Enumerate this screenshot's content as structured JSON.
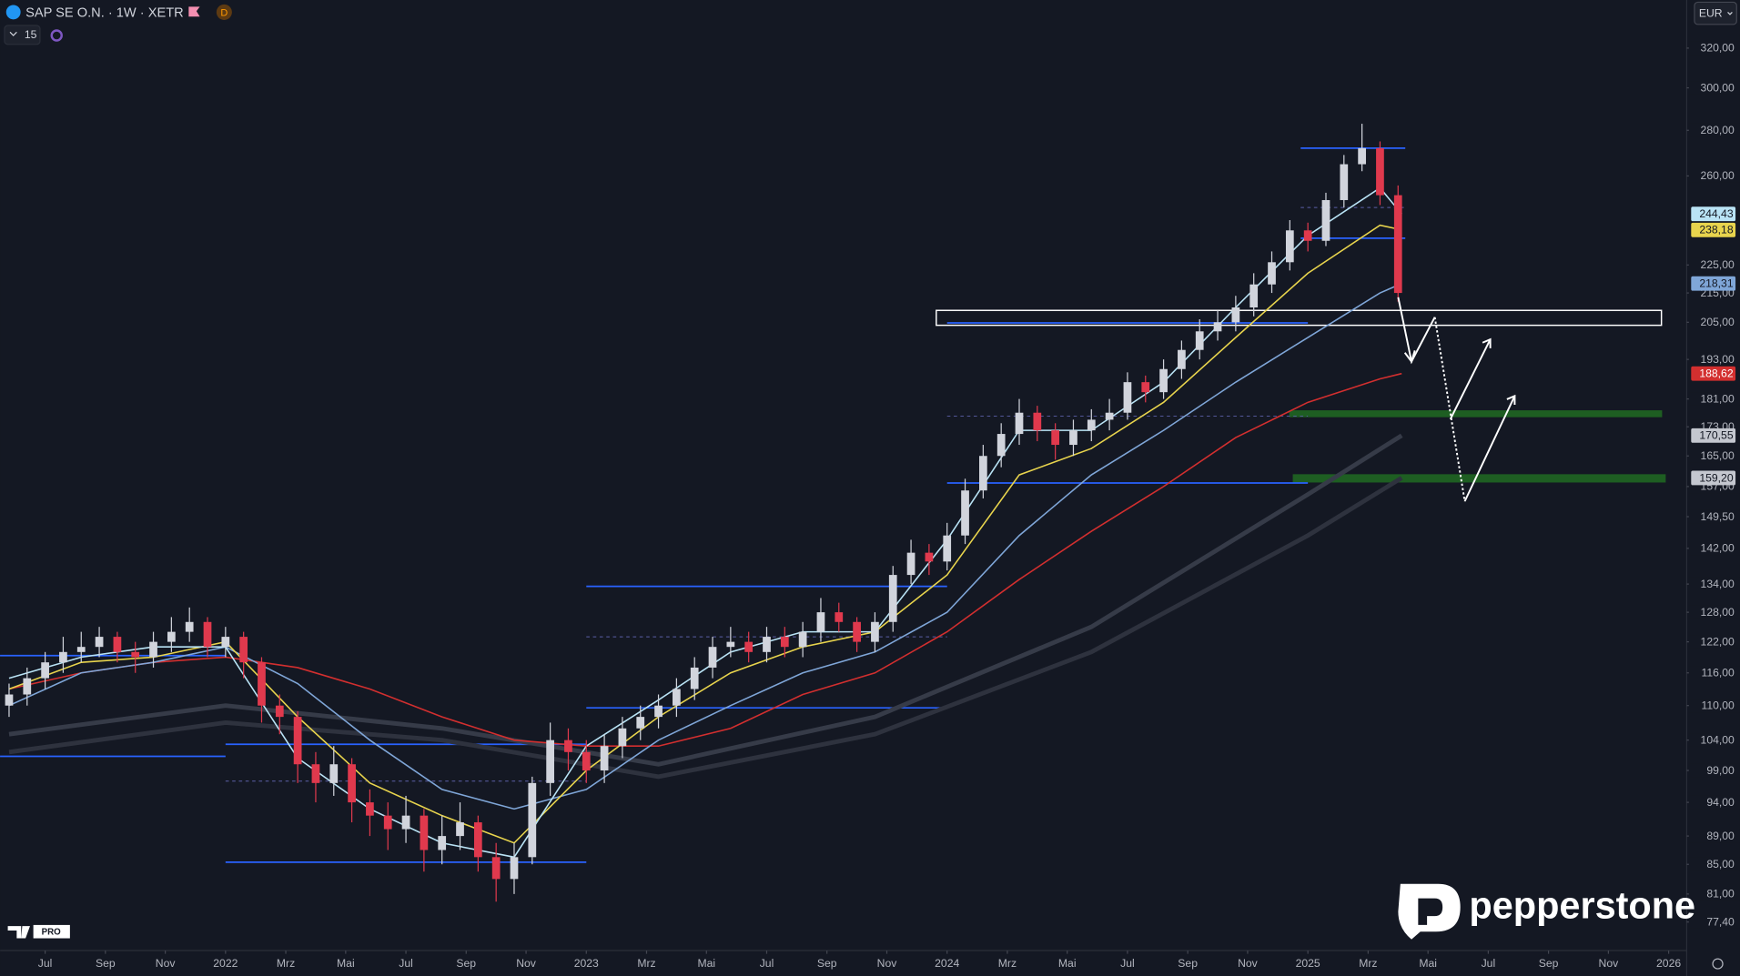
{
  "header": {
    "title": "SAP SE O.N. · 1W · XETR",
    "badge": "D",
    "indicators": "15",
    "currency": "EUR"
  },
  "branding": {
    "brand": "pepperstone",
    "platform": "PRO"
  },
  "chart_data": {
    "type": "candlestick",
    "log_scale": true,
    "grid": false,
    "xlim": [
      2021.375,
      2026.05
    ],
    "ylim": [
      73.9,
      346
    ],
    "up_color": "#d1d4dc",
    "down_color": "#e0394d",
    "xticks": [
      {
        "value": 2021.5,
        "label": "Jul"
      },
      {
        "value": 2021.667,
        "label": "Sep"
      },
      {
        "value": 2021.833,
        "label": "Nov"
      },
      2022,
      {
        "value": 2022.167,
        "label": "Mrz"
      },
      {
        "value": 2022.333,
        "label": "Mai"
      },
      {
        "value": 2022.5,
        "label": "Jul"
      },
      {
        "value": 2022.667,
        "label": "Sep"
      },
      {
        "value": 2022.833,
        "label": "Nov"
      },
      2023,
      {
        "value": 2023.167,
        "label": "Mrz"
      },
      {
        "value": 2023.333,
        "label": "Mai"
      },
      {
        "value": 2023.5,
        "label": "Jul"
      },
      {
        "value": 2023.667,
        "label": "Sep"
      },
      {
        "value": 2023.833,
        "label": "Nov"
      },
      2024,
      {
        "value": 2024.167,
        "label": "Mrz"
      },
      {
        "value": 2024.333,
        "label": "Mai"
      },
      {
        "value": 2024.5,
        "label": "Jul"
      },
      {
        "value": 2024.667,
        "label": "Sep"
      },
      {
        "value": 2024.833,
        "label": "Nov"
      },
      2025,
      {
        "value": 2025.167,
        "label": "Mrz"
      },
      {
        "value": 2025.333,
        "label": "Mai"
      },
      {
        "value": 2025.5,
        "label": "Jul"
      },
      {
        "value": 2025.667,
        "label": "Sep"
      },
      {
        "value": 2025.833,
        "label": "Nov"
      },
      2026
    ],
    "yticks": [
      {
        "value": 320,
        "label": "320,00"
      },
      {
        "value": 300,
        "label": "300,00"
      },
      {
        "value": 280,
        "label": "280,00"
      },
      {
        "value": 260,
        "label": "260,00"
      },
      {
        "value": 225,
        "label": "225,00"
      },
      {
        "value": 215,
        "label": "215,00"
      },
      {
        "value": 205,
        "label": "205,00"
      },
      {
        "value": 193,
        "label": "193,00"
      },
      {
        "value": 181,
        "label": "181,00"
      },
      {
        "value": 173,
        "label": "173,00"
      },
      {
        "value": 165,
        "label": "165,00"
      },
      {
        "value": 157,
        "label": "157,00"
      },
      {
        "value": 149.5,
        "label": "149,50"
      },
      {
        "value": 142,
        "label": "142,00"
      },
      {
        "value": 134,
        "label": "134,00"
      },
      {
        "value": 128,
        "label": "128,00"
      },
      {
        "value": 122,
        "label": "122,00"
      },
      {
        "value": 116,
        "label": "116,00"
      },
      {
        "value": 110,
        "label": "110,00"
      },
      {
        "value": 104,
        "label": "104,00"
      },
      {
        "value": 99,
        "label": "99,00"
      },
      {
        "value": 94,
        "label": "94,00"
      },
      {
        "value": 89,
        "label": "89,00"
      },
      {
        "value": 85,
        "label": "85,00"
      },
      {
        "value": 81,
        "label": "81,00"
      },
      {
        "value": 77.4,
        "label": "77,40"
      }
    ],
    "candles": {
      "x": [
        2021.4,
        2021.45,
        2021.5,
        2021.55,
        2021.6,
        2021.65,
        2021.7,
        2021.75,
        2021.8,
        2021.85,
        2021.9,
        2021.95,
        2022.0,
        2022.05,
        2022.1,
        2022.15,
        2022.2,
        2022.25,
        2022.3,
        2022.35,
        2022.4,
        2022.45,
        2022.5,
        2022.55,
        2022.6,
        2022.65,
        2022.7,
        2022.75,
        2022.8,
        2022.85,
        2022.9,
        2022.95,
        2023.0,
        2023.05,
        2023.1,
        2023.15,
        2023.2,
        2023.25,
        2023.3,
        2023.35,
        2023.4,
        2023.45,
        2023.5,
        2023.55,
        2023.6,
        2023.65,
        2023.7,
        2023.75,
        2023.8,
        2023.85,
        2023.9,
        2023.95,
        2024.0,
        2024.05,
        2024.1,
        2024.15,
        2024.2,
        2024.25,
        2024.3,
        2024.35,
        2024.4,
        2024.45,
        2024.5,
        2024.55,
        2024.6,
        2024.65,
        2024.7,
        2024.75,
        2024.8,
        2024.85,
        2024.9,
        2024.95,
        2025.0,
        2025.05,
        2025.1,
        2025.15,
        2025.2,
        2025.25
      ],
      "open": [
        110,
        112,
        115,
        118,
        120,
        121,
        123,
        120,
        119,
        122,
        124,
        126,
        121,
        123,
        118,
        110,
        108,
        100,
        97,
        100,
        94,
        92,
        90,
        92,
        87,
        89,
        91,
        86,
        83,
        86,
        97,
        104,
        102,
        99,
        103,
        106,
        108,
        110,
        113,
        117,
        121,
        122,
        120,
        123,
        121,
        124,
        128,
        126,
        122,
        126,
        136,
        141,
        139,
        145,
        156,
        165,
        171,
        177,
        172,
        168,
        172,
        175,
        177,
        186,
        183,
        190,
        196,
        202,
        205,
        210,
        218,
        226,
        238,
        234,
        250,
        265,
        272,
        252
      ],
      "high": [
        114,
        117,
        120,
        123,
        124,
        125,
        124,
        122,
        124,
        127,
        129,
        127,
        125,
        124,
        119,
        112,
        109,
        102,
        103,
        101,
        96,
        94,
        95,
        93,
        92,
        94,
        92,
        88,
        88,
        98,
        107,
        106,
        104,
        105,
        108,
        110,
        112,
        115,
        119,
        123,
        125,
        124,
        125,
        125,
        126,
        131,
        130,
        127,
        128,
        138,
        144,
        143,
        148,
        159,
        168,
        174,
        181,
        179,
        174,
        175,
        178,
        181,
        189,
        188,
        193,
        199,
        206,
        209,
        214,
        222,
        230,
        242,
        241,
        253,
        269,
        283,
        275,
        256
      ],
      "low": [
        108,
        110,
        113,
        116,
        118,
        119,
        118,
        116,
        117,
        120,
        122,
        119,
        119,
        115,
        107,
        105,
        97,
        94,
        95,
        91,
        89,
        87,
        88,
        84,
        85,
        87,
        84,
        80,
        81,
        85,
        95,
        99,
        97,
        97,
        101,
        104,
        106,
        108,
        111,
        115,
        119,
        118,
        118,
        119,
        119,
        122,
        124,
        120,
        120,
        124,
        134,
        136,
        137,
        143,
        154,
        162,
        168,
        169,
        164,
        165,
        169,
        172,
        175,
        180,
        181,
        187,
        193,
        199,
        202,
        207,
        215,
        223,
        230,
        232,
        247,
        262,
        248,
        212
      ],
      "close": [
        112,
        115,
        118,
        120,
        121,
        123,
        120,
        119,
        122,
        124,
        126,
        121,
        123,
        118,
        110,
        108,
        100,
        97,
        100,
        94,
        92,
        90,
        92,
        87,
        89,
        91,
        86,
        83,
        86,
        97,
        104,
        102,
        99,
        103,
        106,
        108,
        110,
        113,
        117,
        121,
        122,
        120,
        123,
        121,
        124,
        128,
        126,
        122,
        126,
        136,
        141,
        139,
        145,
        156,
        165,
        171,
        177,
        172,
        168,
        172,
        175,
        177,
        186,
        183,
        190,
        196,
        202,
        205,
        210,
        218,
        226,
        238,
        234,
        250,
        265,
        272,
        252,
        215
      ]
    },
    "series": [
      {
        "color": "#363b48",
        "x": [
          2021.4,
          2022.0,
          2022.6,
          2023.2,
          2023.8,
          2024.4,
          2025.0,
          2025.26
        ],
        "values": [
          105,
          110,
          106,
          100,
          108,
          125,
          155,
          170.55
        ],
        "value_labels": [
          null,
          null,
          null,
          null,
          null,
          null,
          null,
          "170,55"
        ]
      },
      {
        "color": "#2e323e",
        "x": [
          2021.4,
          2022.0,
          2022.6,
          2023.2,
          2023.8,
          2024.4,
          2025.0,
          2025.26
        ],
        "values": [
          102,
          107,
          104,
          98,
          105,
          120,
          145,
          159.2
        ],
        "value_labels": [
          null,
          null,
          null,
          null,
          null,
          null,
          null,
          "159,20"
        ]
      },
      {
        "color": "#d32f2f",
        "x": [
          2021.4,
          2021.6,
          2021.8,
          2022.0,
          2022.2,
          2022.4,
          2022.6,
          2022.8,
          2023.0,
          2023.2,
          2023.4,
          2023.6,
          2023.8,
          2024.0,
          2024.2,
          2024.4,
          2024.6,
          2024.8,
          2025.0,
          2025.2,
          2025.26
        ],
        "values": [
          113,
          116,
          118,
          119,
          117,
          113,
          108,
          104,
          103,
          103,
          106,
          112,
          116,
          124,
          135,
          146,
          157,
          170,
          180,
          187,
          188.62
        ],
        "value_labels": [
          null,
          null,
          null,
          null,
          null,
          null,
          null,
          null,
          null,
          null,
          null,
          null,
          null,
          null,
          null,
          null,
          null,
          null,
          null,
          null,
          "188,62"
        ]
      },
      {
        "color": "#7fa6d8",
        "x": [
          2021.4,
          2021.6,
          2021.8,
          2022.0,
          2022.2,
          2022.4,
          2022.6,
          2022.8,
          2023.0,
          2023.2,
          2023.4,
          2023.6,
          2023.8,
          2024.0,
          2024.2,
          2024.4,
          2024.6,
          2024.8,
          2025.0,
          2025.2,
          2025.26
        ],
        "values": [
          110,
          116,
          118,
          121,
          114,
          104,
          96,
          93,
          96,
          104,
          110,
          116,
          120,
          128,
          145,
          160,
          172,
          186,
          200,
          215,
          218.31
        ],
        "value_labels": [
          null,
          null,
          null,
          null,
          null,
          null,
          null,
          null,
          null,
          null,
          null,
          null,
          null,
          null,
          null,
          null,
          null,
          null,
          null,
          null,
          "218,31"
        ]
      },
      {
        "color": "#e8d44d",
        "x": [
          2021.4,
          2021.6,
          2021.8,
          2022.0,
          2022.2,
          2022.4,
          2022.6,
          2022.8,
          2023.0,
          2023.2,
          2023.4,
          2023.6,
          2023.8,
          2024.0,
          2024.2,
          2024.4,
          2024.6,
          2024.8,
          2025.0,
          2025.2,
          2025.26
        ],
        "values": [
          113,
          118,
          119,
          122,
          108,
          97,
          92,
          88,
          99,
          108,
          116,
          121,
          124,
          136,
          160,
          167,
          180,
          200,
          222,
          240,
          238.18
        ],
        "value_labels": [
          null,
          null,
          null,
          null,
          null,
          null,
          null,
          null,
          null,
          null,
          null,
          null,
          null,
          null,
          null,
          null,
          null,
          null,
          null,
          null,
          "238,18"
        ]
      },
      {
        "color": "#b9e3f5",
        "x": [
          2021.4,
          2021.6,
          2021.8,
          2022.0,
          2022.2,
          2022.4,
          2022.6,
          2022.8,
          2023.0,
          2023.2,
          2023.4,
          2023.6,
          2023.8,
          2024.0,
          2024.2,
          2024.4,
          2024.6,
          2024.8,
          2025.0,
          2025.2,
          2025.26
        ],
        "values": [
          115,
          119,
          121,
          121,
          101,
          93,
          88,
          86,
          103,
          111,
          120,
          124,
          124,
          144,
          172,
          172,
          186,
          210,
          236,
          255,
          244.43
        ],
        "value_labels": [
          null,
          null,
          null,
          null,
          null,
          null,
          null,
          null,
          null,
          null,
          null,
          null,
          null,
          null,
          null,
          null,
          null,
          null,
          null,
          null,
          "244,43"
        ]
      }
    ],
    "levels": [
      {
        "price": 119.3,
        "from": 2021.375,
        "to": 2022.0,
        "color": "#2962ff",
        "style": "solid"
      },
      {
        "price": 101.3,
        "from": 2021.375,
        "to": 2022.0,
        "color": "#2962ff",
        "style": "solid"
      },
      {
        "price": 103.3,
        "from": 2022.0,
        "to": 2023.0,
        "color": "#2962ff",
        "style": "solid"
      },
      {
        "price": 85.3,
        "from": 2022.0,
        "to": 2023.0,
        "color": "#2962ff",
        "style": "solid"
      },
      {
        "price": 97.3,
        "from": 2022.0,
        "to": 2023.0,
        "color": "#5b5fa8",
        "style": "dashed"
      },
      {
        "price": 133.5,
        "from": 2023.0,
        "to": 2024.0,
        "color": "#2962ff",
        "style": "solid"
      },
      {
        "price": 109.6,
        "from": 2023.0,
        "to": 2024.0,
        "color": "#2962ff",
        "style": "solid"
      },
      {
        "price": 123,
        "from": 2023.0,
        "to": 2024.0,
        "color": "#5b5fa8",
        "style": "dashed"
      },
      {
        "price": 157.9,
        "from": 2024.0,
        "to": 2025.0,
        "color": "#2962ff",
        "style": "solid"
      },
      {
        "price": 204.8,
        "from": 2024.0,
        "to": 2025.0,
        "color": "#2962ff",
        "style": "solid"
      },
      {
        "price": 176,
        "from": 2024.0,
        "to": 2025.0,
        "color": "#5b5fa8",
        "style": "dashed"
      },
      {
        "price": 272,
        "from": 2024.98,
        "to": 2025.27,
        "color": "#2962ff",
        "style": "solid"
      },
      {
        "price": 235,
        "from": 2024.98,
        "to": 2025.27,
        "color": "#2962ff",
        "style": "solid"
      },
      {
        "price": 247,
        "from": 2024.98,
        "to": 2025.27,
        "color": "#5b5fa8",
        "style": "dashed"
      }
    ],
    "zones": [
      {
        "low": 204,
        "high": 209,
        "from": 2023.97,
        "to": 2025.98,
        "color": "#ffffff",
        "fill": "none"
      },
      {
        "low": 175.9,
        "high": 177.5,
        "from": 2024.95,
        "to": 2025.98,
        "color": "#1e5e22",
        "fill": "#1e5e22"
      },
      {
        "low": 158.2,
        "high": 160,
        "from": 2024.96,
        "to": 2025.99,
        "color": "#1e5e22",
        "fill": "#1e5e22"
      }
    ]
  }
}
